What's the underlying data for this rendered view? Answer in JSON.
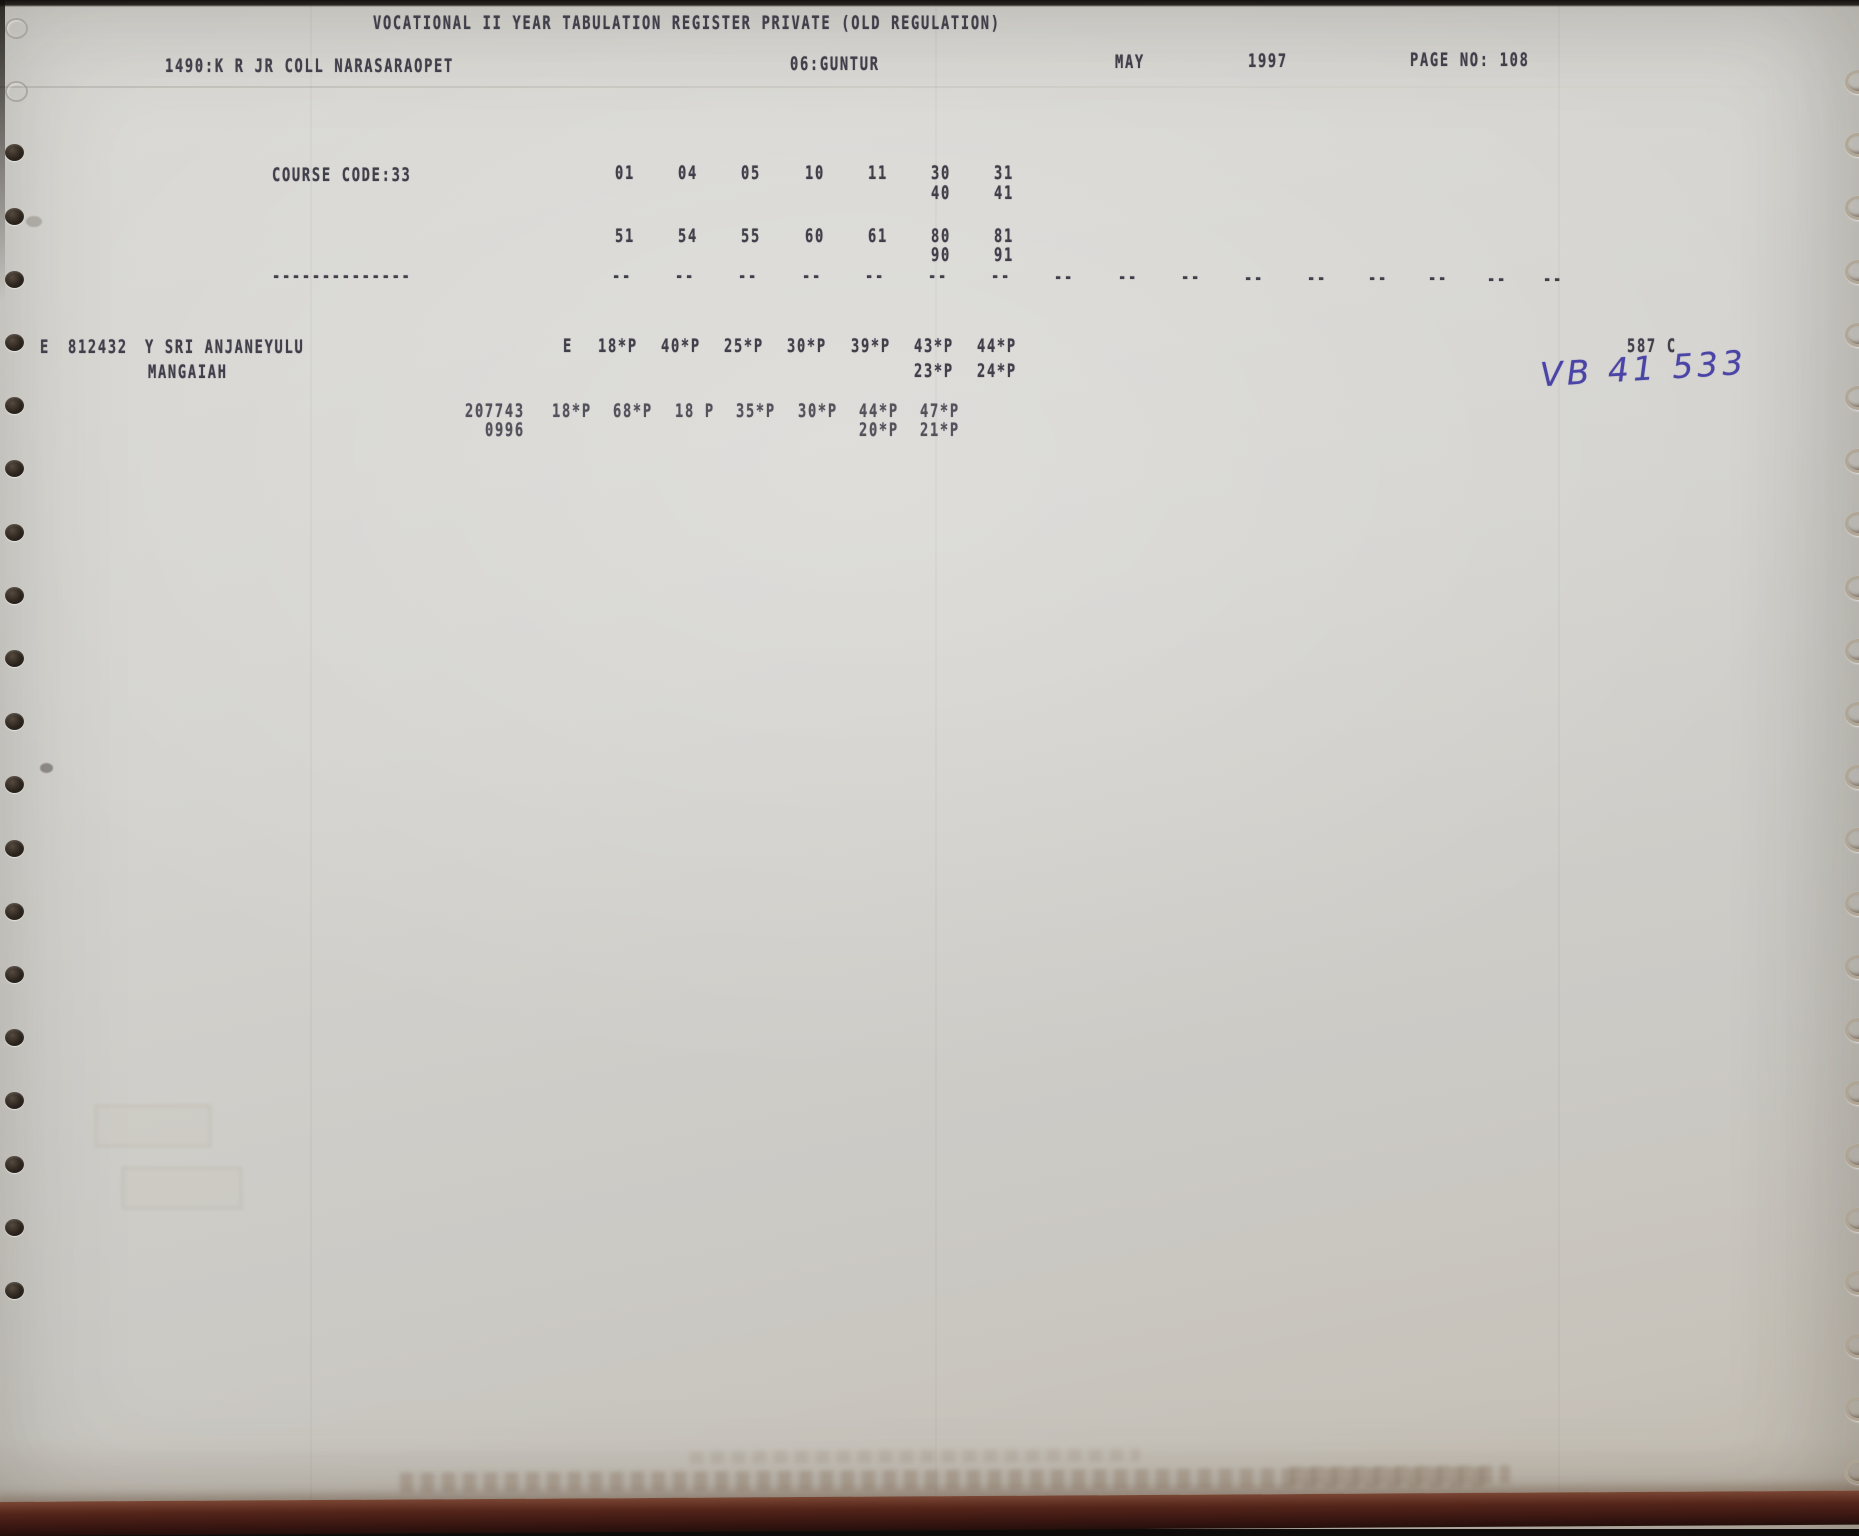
{
  "page": {
    "title": "VOCATIONAL II YEAR TABULATION REGISTER PRIVATE (OLD REGULATION)",
    "college": "1490:K R JR COLL NARASARAOPET",
    "district": "06:GUNTUR",
    "month": "MAY",
    "year": "1997",
    "page_no": "PAGE NO: 108"
  },
  "course": {
    "label": "COURSE CODE:33",
    "codes_row1": [
      "01",
      "04",
      "05",
      "10",
      "11",
      "30",
      "31"
    ],
    "codes_row1b": [
      "40",
      "41"
    ],
    "codes_row2": [
      "51",
      "54",
      "55",
      "60",
      "61",
      "80",
      "81"
    ],
    "codes_row2b": [
      "90",
      "91"
    ],
    "separator_long": "--------------",
    "separator_pair": "--"
  },
  "student": {
    "row_marker": "E",
    "hall_ticket": "812432",
    "name": "Y SRI ANJANEYULU",
    "father_name": "MANGAIAH",
    "medium_marker": "E",
    "marks_row1": [
      "18*P",
      "40*P",
      "25*P",
      "30*P",
      "39*P",
      "43*P",
      "44*P"
    ],
    "marks_row1b": [
      "23*P",
      "24*P"
    ],
    "total": "587 C",
    "handwritten_serial": "VB 41 533",
    "previous_hall_ticket": "207743",
    "previous_session_code": "0996",
    "marks_row2": [
      "18*P",
      "68*P",
      "18 P",
      "35*P",
      "30*P",
      "44*P",
      "47*P"
    ],
    "marks_row2b": [
      "20*P",
      "21*P"
    ]
  }
}
